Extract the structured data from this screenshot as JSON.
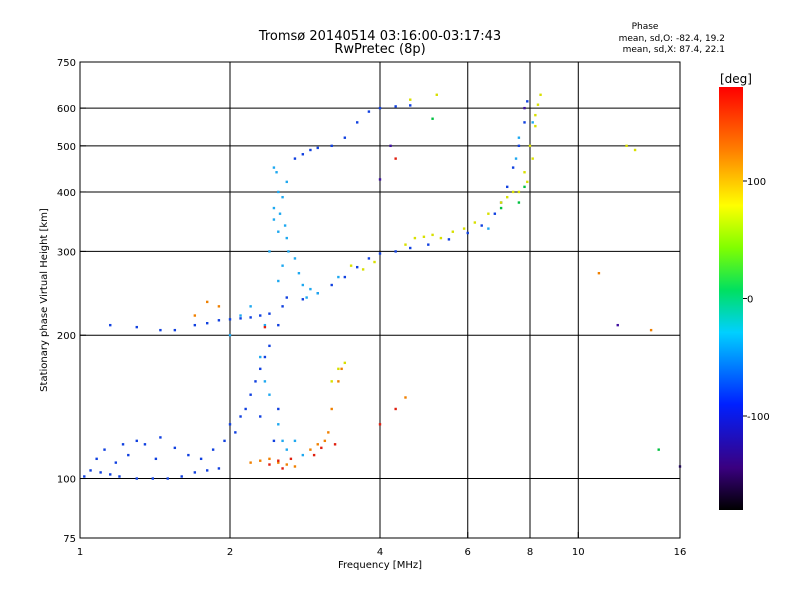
{
  "chart_data": {
    "type": "scatter",
    "title": "Tromsø 20140514 03:16:00-03:17:43",
    "subtitle": "RwPretec (8p)",
    "xlabel": "Frequency [MHz]",
    "ylabel": "Stationary phase Virtual Height [km]",
    "x_scale": "log",
    "y_scale": "log",
    "xlim": [
      1,
      16
    ],
    "ylim": [
      75,
      750
    ],
    "x_ticks": [
      1,
      2,
      4,
      6,
      8,
      10,
      16
    ],
    "x_tick_labels": [
      "1",
      "2",
      "4",
      "6",
      "8",
      "10",
      "16"
    ],
    "y_ticks": [
      75,
      100,
      200,
      300,
      400,
      500,
      600,
      750
    ],
    "y_tick_labels": [
      "75",
      "100",
      "200",
      "300",
      "400",
      "500",
      "600",
      "750"
    ],
    "grid": true,
    "phase_stats": {
      "heading": "Phase",
      "line_o": "mean, sd,O: -82.4, 19.2",
      "line_x": "mean, sd,X:  87.4, 22.1"
    },
    "colorbar": {
      "label": "[deg]",
      "range": [
        -180,
        180
      ],
      "ticks": [
        100,
        0,
        -100
      ],
      "tick_labels": [
        "100",
        "0",
        "-100"
      ]
    },
    "series": [
      {
        "phase": -120,
        "color": "#1040e0",
        "points": [
          [
            1.02,
            101
          ],
          [
            1.05,
            104
          ],
          [
            1.1,
            103
          ],
          [
            1.15,
            102
          ],
          [
            1.2,
            101
          ],
          [
            1.3,
            100
          ],
          [
            1.4,
            100
          ],
          [
            1.5,
            100
          ],
          [
            1.6,
            101
          ],
          [
            1.7,
            103
          ],
          [
            1.8,
            104
          ],
          [
            1.9,
            105
          ],
          [
            1.18,
            108
          ],
          [
            1.25,
            112
          ],
          [
            1.35,
            118
          ],
          [
            1.42,
            110
          ],
          [
            1.55,
            116
          ],
          [
            1.65,
            112
          ],
          [
            1.12,
            115
          ],
          [
            1.3,
            120
          ],
          [
            1.45,
            122
          ],
          [
            1.08,
            110
          ],
          [
            1.22,
            118
          ],
          [
            1.75,
            110
          ],
          [
            1.85,
            115
          ],
          [
            1.95,
            120
          ],
          [
            2.0,
            130
          ],
          [
            2.05,
            125
          ],
          [
            2.1,
            135
          ],
          [
            2.15,
            140
          ],
          [
            2.2,
            150
          ],
          [
            2.25,
            160
          ],
          [
            2.3,
            170
          ],
          [
            2.35,
            180
          ],
          [
            2.4,
            190
          ],
          [
            2.5,
            210
          ],
          [
            2.55,
            230
          ],
          [
            2.6,
            240
          ],
          [
            2.8,
            238
          ],
          [
            3.0,
            245
          ],
          [
            3.2,
            255
          ],
          [
            3.4,
            265
          ],
          [
            3.6,
            278
          ],
          [
            3.8,
            290
          ],
          [
            4.0,
            297
          ],
          [
            4.3,
            300
          ],
          [
            4.6,
            305
          ],
          [
            5.0,
            310
          ],
          [
            5.5,
            318
          ],
          [
            6.0,
            328
          ],
          [
            6.4,
            340
          ],
          [
            6.8,
            360
          ],
          [
            7.0,
            380
          ],
          [
            7.2,
            410
          ],
          [
            7.4,
            450
          ],
          [
            7.6,
            500
          ],
          [
            7.8,
            560
          ],
          [
            7.9,
            620
          ],
          [
            1.55,
            205
          ],
          [
            1.7,
            210
          ],
          [
            1.8,
            212
          ],
          [
            1.9,
            215
          ],
          [
            2.0,
            216
          ],
          [
            2.1,
            217
          ],
          [
            2.2,
            218
          ],
          [
            2.3,
            220
          ],
          [
            2.4,
            222
          ],
          [
            2.7,
            470
          ],
          [
            2.8,
            480
          ],
          [
            2.9,
            490
          ],
          [
            3.0,
            495
          ],
          [
            3.2,
            500
          ],
          [
            3.4,
            520
          ],
          [
            3.6,
            560
          ],
          [
            3.8,
            590
          ],
          [
            4.0,
            600
          ],
          [
            4.3,
            605
          ],
          [
            4.6,
            608
          ],
          [
            1.15,
            210
          ],
          [
            1.3,
            208
          ],
          [
            1.45,
            205
          ],
          [
            2.45,
            120
          ],
          [
            2.5,
            140
          ],
          [
            2.3,
            135
          ]
        ]
      },
      {
        "phase": -80,
        "color": "#1ea8f0",
        "points": [
          [
            2.4,
            300
          ],
          [
            2.45,
            350
          ],
          [
            2.5,
            400
          ],
          [
            2.45,
            450
          ],
          [
            2.5,
            260
          ],
          [
            2.55,
            280
          ],
          [
            2.6,
            320
          ],
          [
            2.5,
            330
          ],
          [
            2.45,
            370
          ],
          [
            2.55,
            390
          ],
          [
            2.6,
            420
          ],
          [
            2.48,
            440
          ],
          [
            2.52,
            360
          ],
          [
            2.58,
            340
          ],
          [
            2.62,
            300
          ],
          [
            2.7,
            290
          ],
          [
            2.75,
            270
          ],
          [
            2.8,
            255
          ],
          [
            2.9,
            250
          ],
          [
            3.0,
            245
          ],
          [
            3.3,
            265
          ],
          [
            2.2,
            230
          ],
          [
            2.1,
            220
          ],
          [
            2.0,
            200
          ],
          [
            2.3,
            180
          ],
          [
            2.35,
            160
          ],
          [
            2.4,
            150
          ],
          [
            2.5,
            130
          ],
          [
            2.55,
            120
          ],
          [
            2.6,
            115
          ],
          [
            2.7,
            120
          ],
          [
            2.8,
            112
          ],
          [
            6.6,
            335
          ],
          [
            7.5,
            470
          ],
          [
            7.6,
            520
          ],
          [
            8.1,
            560
          ],
          [
            2.85,
            240
          ],
          [
            2.35,
            210
          ]
        ]
      },
      {
        "phase": 100,
        "color": "#d8e000",
        "points": [
          [
            3.5,
            280
          ],
          [
            3.7,
            275
          ],
          [
            3.9,
            285
          ],
          [
            4.5,
            310
          ],
          [
            4.7,
            320
          ],
          [
            4.9,
            322
          ],
          [
            5.1,
            325
          ],
          [
            5.3,
            320
          ],
          [
            5.6,
            330
          ],
          [
            5.9,
            335
          ],
          [
            6.2,
            345
          ],
          [
            6.6,
            360
          ],
          [
            7.0,
            380
          ],
          [
            7.4,
            400
          ],
          [
            7.8,
            440
          ],
          [
            8.0,
            500
          ],
          [
            8.2,
            580
          ],
          [
            8.3,
            610
          ],
          [
            8.2,
            550
          ],
          [
            8.1,
            470
          ],
          [
            7.9,
            420
          ],
          [
            7.6,
            400
          ],
          [
            7.2,
            390
          ],
          [
            8.4,
            640
          ],
          [
            4.6,
            625
          ],
          [
            5.2,
            640
          ],
          [
            12.5,
            500
          ],
          [
            13.0,
            490
          ],
          [
            3.3,
            170
          ],
          [
            3.2,
            160
          ],
          [
            3.4,
            175
          ]
        ]
      },
      {
        "phase": 150,
        "color": "#f08000",
        "points": [
          [
            2.2,
            108
          ],
          [
            2.3,
            109
          ],
          [
            2.4,
            110
          ],
          [
            2.5,
            108
          ],
          [
            2.6,
            107
          ],
          [
            2.7,
            106
          ],
          [
            2.9,
            115
          ],
          [
            3.0,
            118
          ],
          [
            3.1,
            120
          ],
          [
            3.15,
            125
          ],
          [
            3.2,
            140
          ],
          [
            3.3,
            160
          ],
          [
            3.35,
            170
          ],
          [
            1.8,
            235
          ],
          [
            1.9,
            230
          ],
          [
            1.7,
            220
          ],
          [
            4.5,
            148
          ],
          [
            11.0,
            270
          ],
          [
            14.0,
            205
          ]
        ]
      },
      {
        "phase": 170,
        "color": "#e02010",
        "points": [
          [
            2.4,
            107
          ],
          [
            2.5,
            109
          ],
          [
            2.55,
            105
          ],
          [
            2.65,
            110
          ],
          [
            2.95,
            112
          ],
          [
            3.05,
            116
          ],
          [
            3.25,
            118
          ],
          [
            4.0,
            130
          ],
          [
            4.3,
            140
          ],
          [
            4.3,
            470
          ],
          [
            2.35,
            208
          ]
        ]
      },
      {
        "phase": 0,
        "color": "#00c040",
        "points": [
          [
            7.6,
            380
          ],
          [
            7.8,
            410
          ],
          [
            5.1,
            570
          ],
          [
            14.5,
            115
          ],
          [
            7.0,
            370
          ]
        ]
      },
      {
        "phase": -140,
        "color": "#4010a0",
        "points": [
          [
            4.2,
            500
          ],
          [
            4.0,
            425
          ],
          [
            7.8,
            600
          ],
          [
            12.0,
            210
          ],
          [
            16.0,
            106
          ]
        ]
      }
    ]
  }
}
